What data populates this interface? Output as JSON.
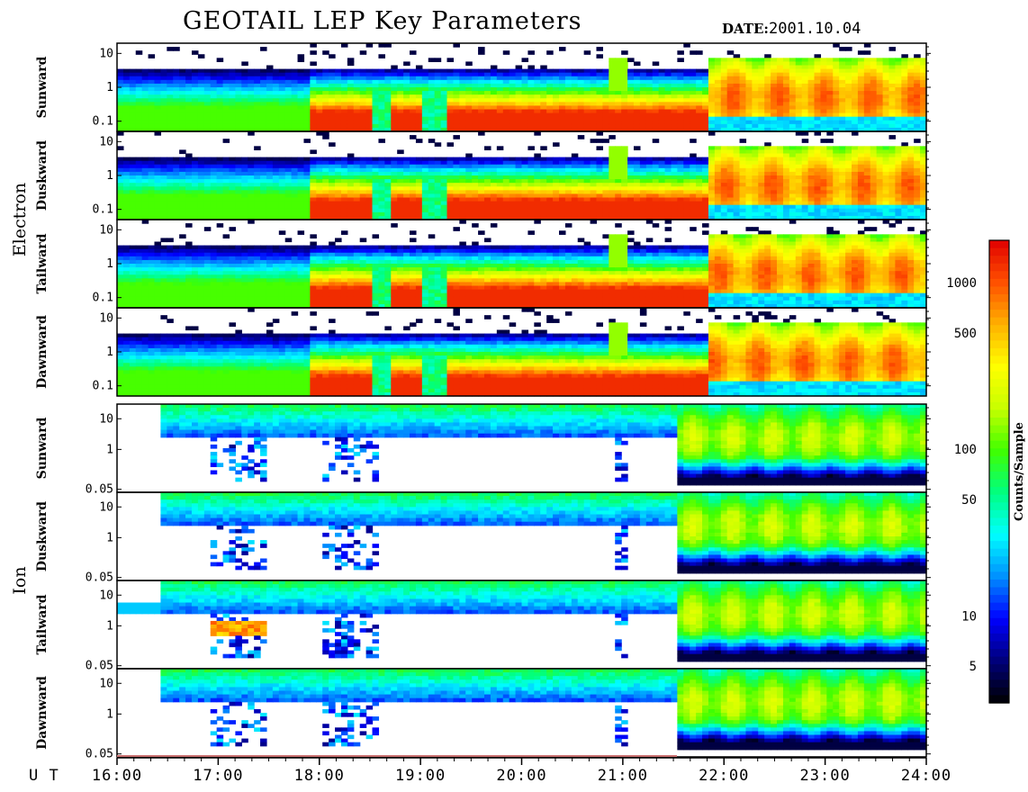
{
  "title": "GEOTAIL LEP Key Parameters",
  "date_label": "DATE:",
  "date_value": "2001.10.04",
  "chart_data": {
    "type": "heatmap",
    "x_axis_label": "U T",
    "x_ticks": [
      "16:00",
      "17:00",
      "18:00",
      "19:00",
      "20:00",
      "21:00",
      "22:00",
      "23:00",
      "24:00"
    ],
    "x_range_hours": [
      16,
      24
    ],
    "groups": [
      {
        "name": "Electron",
        "y_ticks": [
          "10",
          "1",
          "0.1"
        ],
        "y_tick_values": [
          10,
          1,
          0.1
        ],
        "y_range": [
          0.05,
          20
        ],
        "y_scale": "log",
        "panels": [
          "Sunward",
          "Duskward",
          "Tailward",
          "Dawnward"
        ]
      },
      {
        "name": "Ion",
        "y_ticks": [
          "10",
          "1",
          "0.05"
        ],
        "y_tick_values": [
          10,
          1,
          0.05
        ],
        "y_range": [
          0.04,
          30
        ],
        "y_scale": "log",
        "panels": [
          "Sunward",
          "Duskward",
          "Tailward",
          "Dawnward"
        ]
      }
    ],
    "colorbar": {
      "label": "Counts/Sample",
      "scale": "log",
      "ticks": [
        "1000",
        "500",
        "100",
        "50",
        "10",
        "5"
      ],
      "tick_values": [
        1000,
        500,
        100,
        50,
        10,
        5
      ],
      "range": [
        3,
        1800
      ],
      "colors": [
        "#000000",
        "#00007a",
        "#0000ff",
        "#0090ff",
        "#00ffff",
        "#00ff80",
        "#40ff00",
        "#c8ff00",
        "#ffff00",
        "#ffb000",
        "#ff5000",
        "#e00000"
      ]
    },
    "grid": false,
    "legend": "colorbar right"
  }
}
